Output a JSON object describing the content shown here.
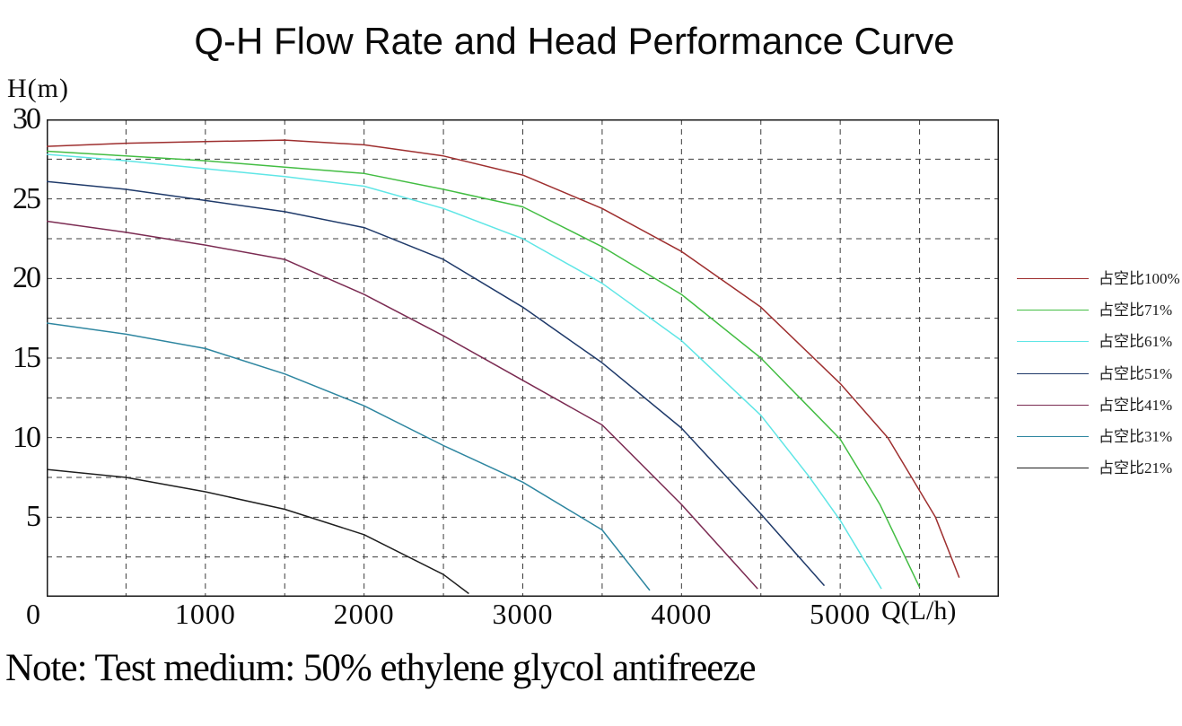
{
  "title": "Q-H Flow Rate and Head Performance Curve",
  "note": "Note: Test medium: 50% ethylene glycol antifreeze",
  "y_axis": {
    "label": "H(m)",
    "min": 0,
    "max": 30,
    "grid_step": 2.5,
    "ticks": [
      "30",
      "25",
      "20",
      "15",
      "10",
      "5"
    ]
  },
  "x_axis": {
    "label": "Q(L/h)",
    "min": 0,
    "max": 6000,
    "grid_step": 500,
    "ticks": [
      "0",
      "1000",
      "2000",
      "3000",
      "4000",
      "5000"
    ]
  },
  "chart_data": {
    "type": "line",
    "title": "Q-H Flow Rate and Head Performance Curve",
    "xlabel": "Q(L/h)",
    "ylabel": "H(m)",
    "xlim": [
      0,
      6000
    ],
    "ylim": [
      0,
      30
    ],
    "grid": "dashed; vertical every 500 L/h, horizontal every 2.5 m",
    "legend_position": "right",
    "series": [
      {
        "name": "占空比100%",
        "color": "#9e2f2f",
        "points": [
          [
            0,
            28.3
          ],
          [
            500,
            28.5
          ],
          [
            1000,
            28.6
          ],
          [
            1500,
            28.7
          ],
          [
            2000,
            28.4
          ],
          [
            2500,
            27.7
          ],
          [
            3000,
            26.5
          ],
          [
            3500,
            24.4
          ],
          [
            4000,
            21.7
          ],
          [
            4500,
            18.2
          ],
          [
            5000,
            13.4
          ],
          [
            5300,
            10
          ],
          [
            5600,
            5
          ],
          [
            5750,
            1.2
          ]
        ]
      },
      {
        "name": "占空比71%",
        "color": "#43bd43",
        "points": [
          [
            0,
            28.0
          ],
          [
            500,
            27.7
          ],
          [
            1000,
            27.4
          ],
          [
            1500,
            27.0
          ],
          [
            2000,
            26.6
          ],
          [
            2500,
            25.6
          ],
          [
            3000,
            24.5
          ],
          [
            3500,
            22.0
          ],
          [
            4000,
            19.0
          ],
          [
            4500,
            15.0
          ],
          [
            5000,
            9.9
          ],
          [
            5250,
            5.8
          ],
          [
            5500,
            0.6
          ]
        ]
      },
      {
        "name": "占空比61%",
        "color": "#5fe6e6",
        "points": [
          [
            0,
            27.8
          ],
          [
            500,
            27.4
          ],
          [
            1000,
            26.9
          ],
          [
            1500,
            26.4
          ],
          [
            2000,
            25.8
          ],
          [
            2500,
            24.4
          ],
          [
            3000,
            22.5
          ],
          [
            3500,
            19.7
          ],
          [
            4000,
            16.1
          ],
          [
            4500,
            11.4
          ],
          [
            4800,
            7.6
          ],
          [
            5000,
            4.8
          ],
          [
            5260,
            0.5
          ]
        ]
      },
      {
        "name": "占空比51%",
        "color": "#1f3a6a",
        "points": [
          [
            0,
            26.1
          ],
          [
            500,
            25.6
          ],
          [
            1000,
            24.9
          ],
          [
            1500,
            24.2
          ],
          [
            2000,
            23.2
          ],
          [
            2500,
            21.2
          ],
          [
            3000,
            18.2
          ],
          [
            3500,
            14.7
          ],
          [
            4000,
            10.6
          ],
          [
            4500,
            5.2
          ],
          [
            4900,
            0.7
          ]
        ]
      },
      {
        "name": "占空比41%",
        "color": "#7b2b52",
        "points": [
          [
            0,
            23.6
          ],
          [
            500,
            22.9
          ],
          [
            1000,
            22.1
          ],
          [
            1500,
            21.2
          ],
          [
            2000,
            19.0
          ],
          [
            2500,
            16.4
          ],
          [
            3000,
            13.6
          ],
          [
            3500,
            10.8
          ],
          [
            4000,
            5.8
          ],
          [
            4480,
            0.5
          ]
        ]
      },
      {
        "name": "占空比31%",
        "color": "#2e86a0",
        "points": [
          [
            0,
            17.2
          ],
          [
            500,
            16.5
          ],
          [
            1000,
            15.6
          ],
          [
            1500,
            14.0
          ],
          [
            2000,
            12.0
          ],
          [
            2500,
            9.5
          ],
          [
            3000,
            7.2
          ],
          [
            3500,
            4.2
          ],
          [
            3800,
            0.4
          ]
        ]
      },
      {
        "name": "占空比21%",
        "color": "#1f1f1f",
        "points": [
          [
            0,
            8.0
          ],
          [
            500,
            7.5
          ],
          [
            1000,
            6.6
          ],
          [
            1500,
            5.5
          ],
          [
            2000,
            3.9
          ],
          [
            2500,
            1.4
          ],
          [
            2660,
            0.2
          ]
        ]
      }
    ]
  },
  "style": {
    "grid_color": "#3c3c3c",
    "border_color": "#1a1a1a",
    "background": "#ffffff"
  }
}
